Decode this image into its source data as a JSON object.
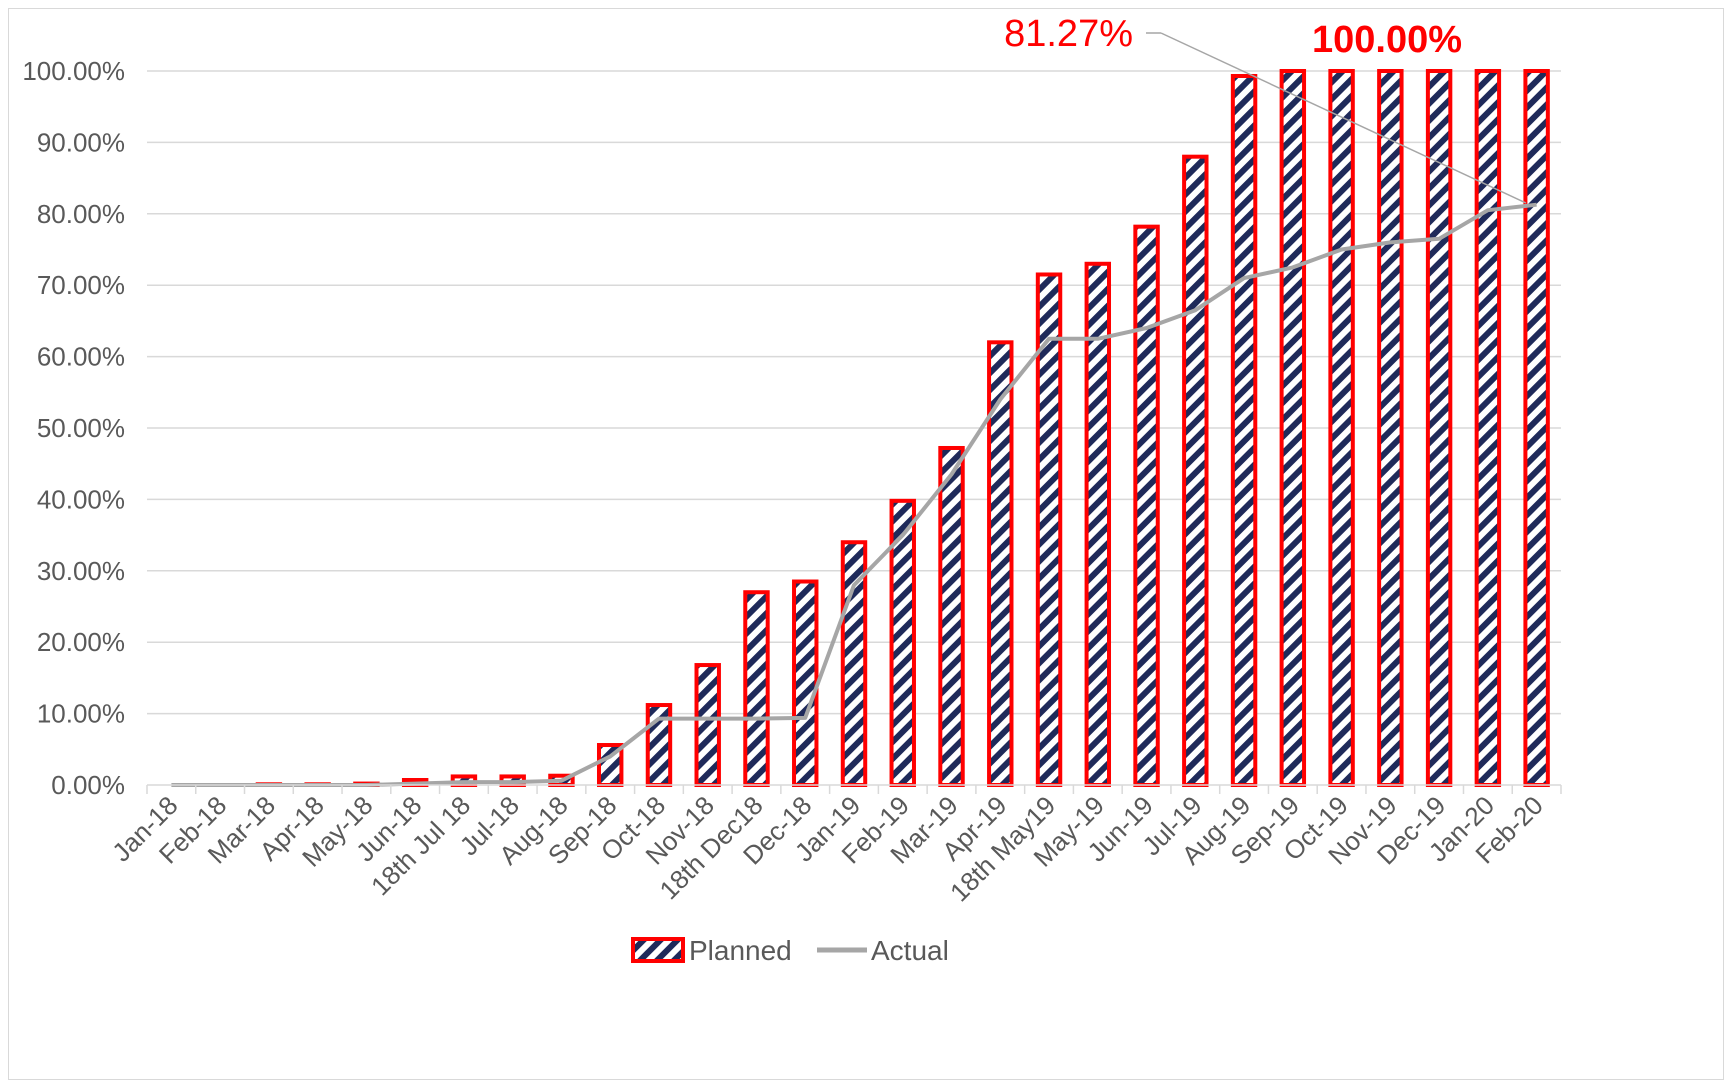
{
  "chart_data": {
    "type": "bar",
    "categories": [
      "Jan-18",
      "Feb-18",
      "Mar-18",
      "Apr-18",
      "May-18",
      "Jun-18",
      "18th Jul 18",
      "Jul-18",
      "Aug-18",
      "Sep-18",
      "Oct-18",
      "Nov-18",
      "18th Dec18",
      "Dec-18",
      "Jan-19",
      "Feb-19",
      "Mar-19",
      "Apr-19",
      "18th May19",
      "May-19",
      "Jun-19",
      "Jul-19",
      "Aug-19",
      "Sep-19",
      "Oct-19",
      "Nov-19",
      "Dec-19",
      "Jan-20",
      "Feb-20"
    ],
    "series": [
      {
        "name": "Planned",
        "kind": "bar",
        "values": [
          0.0,
          0.0,
          0.1,
          0.1,
          0.2,
          0.7,
          1.2,
          1.2,
          1.3,
          5.6,
          11.2,
          16.8,
          27.0,
          28.5,
          34.0,
          39.8,
          47.2,
          62.0,
          71.5,
          73.0,
          78.2,
          88.0,
          99.3,
          100.0,
          100.0,
          100.0,
          100.0,
          100.0,
          100.0
        ],
        "color": "#ff0000",
        "pattern_color": "#1f2a5a"
      },
      {
        "name": "Actual",
        "kind": "line",
        "values": [
          0.0,
          0.0,
          0.0,
          0.0,
          0.0,
          0.2,
          0.4,
          0.4,
          0.6,
          4.0,
          9.3,
          9.3,
          9.3,
          9.4,
          28.0,
          35.0,
          43.5,
          54.0,
          62.5,
          62.5,
          64.0,
          66.5,
          71.0,
          72.5,
          75.0,
          76.0,
          76.5,
          80.5,
          81.27
        ],
        "color": "#a6a6a6"
      }
    ],
    "yticks": [
      "0.00%",
      "10.00%",
      "20.00%",
      "30.00%",
      "40.00%",
      "50.00%",
      "60.00%",
      "70.00%",
      "80.00%",
      "90.00%",
      "100.00%"
    ],
    "ylim": [
      0,
      100
    ],
    "grid": true,
    "legend": "bottom",
    "annotations": {
      "actual_final": "81.27%",
      "planned_final": "100.00%"
    }
  }
}
